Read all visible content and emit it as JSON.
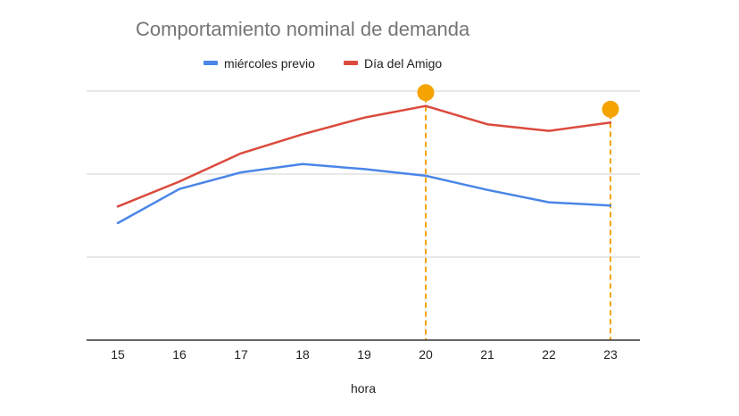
{
  "chart_data": {
    "type": "line",
    "title": "Comportamiento nominal de demanda",
    "xlabel": "hora",
    "ylabel": "",
    "x": [
      15,
      16,
      17,
      18,
      19,
      20,
      21,
      22,
      23
    ],
    "ylim": [
      0,
      3
    ],
    "y_ticks_labeled": false,
    "grid": true,
    "legend_position": "top",
    "series": [
      {
        "name": "miércoles previo",
        "color": "#4a86e8",
        "values": [
          1.41,
          1.82,
          2.02,
          2.12,
          2.06,
          1.98,
          1.81,
          1.66,
          1.62
        ]
      },
      {
        "name": "Día del Amigo",
        "color": "#db4a3c",
        "values": [
          1.61,
          1.91,
          2.25,
          2.48,
          2.68,
          2.82,
          2.6,
          2.52,
          2.62
        ]
      }
    ],
    "annotations": [
      {
        "x": 20,
        "type": "vertical-dashed-marker",
        "color": "#f4a300"
      },
      {
        "x": 23,
        "type": "vertical-dashed-marker",
        "color": "#f4a300"
      }
    ]
  }
}
